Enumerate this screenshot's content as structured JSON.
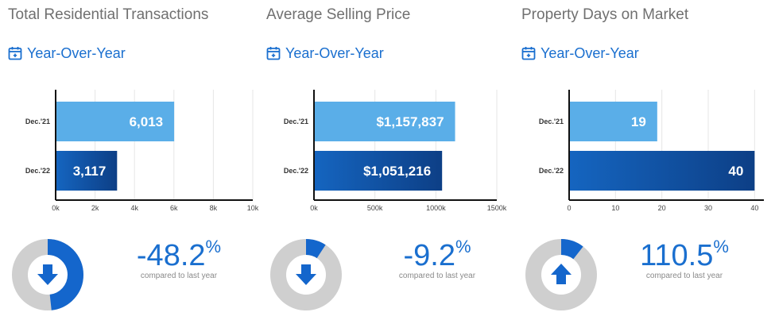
{
  "panels": [
    {
      "title": "Total Residential Transactions",
      "period": "Year-Over-Year",
      "change": {
        "value": "-48.2",
        "unit": "%",
        "note": "compared to last year",
        "direction": "down",
        "fraction": 0.482
      },
      "chart_data": {
        "type": "bar",
        "orientation": "horizontal",
        "categories": [
          "Dec.'21",
          "Dec.'22"
        ],
        "values": [
          6013,
          3117
        ],
        "data_labels": [
          "6,013",
          "3,117"
        ],
        "xticks": [
          "0k",
          "2k",
          "4k",
          "6k",
          "8k",
          "10k"
        ],
        "xlim": [
          0,
          10000
        ],
        "grid": true
      }
    },
    {
      "title": "Average Selling Price",
      "period": "Year-Over-Year",
      "change": {
        "value": "-9.2",
        "unit": "%",
        "note": "compared to last year",
        "direction": "down",
        "fraction": 0.092
      },
      "chart_data": {
        "type": "bar",
        "orientation": "horizontal",
        "categories": [
          "Dec.'21",
          "Dec.'22"
        ],
        "values": [
          1157837,
          1051216
        ],
        "data_labels": [
          "$1,157,837",
          "$1,051,216"
        ],
        "xticks": [
          "0k",
          "500k",
          "1000k",
          "1500k"
        ],
        "xlim": [
          0,
          1500000
        ],
        "grid": true
      }
    },
    {
      "title": "Property Days on Market",
      "period": "Year-Over-Year",
      "change": {
        "value": "110.5",
        "unit": "%",
        "note": "compared to last year",
        "direction": "up",
        "fraction": 0.105
      },
      "chart_data": {
        "type": "bar",
        "orientation": "horizontal",
        "categories": [
          "Dec.'21",
          "Dec.'22"
        ],
        "values": [
          19,
          40
        ],
        "data_labels": [
          "19",
          "40"
        ],
        "xticks": [
          "0",
          "10",
          "20",
          "30",
          "40"
        ],
        "xlim": [
          0,
          42
        ],
        "grid": true
      }
    }
  ],
  "colors": {
    "bar_prev": "#5aaee8",
    "bar_curr_start": "#1565c0",
    "bar_curr_end": "#0d3f86",
    "accent": "#1a6fcf",
    "donut_track": "#cfcfcf",
    "donut_fill": "#1466cc"
  }
}
